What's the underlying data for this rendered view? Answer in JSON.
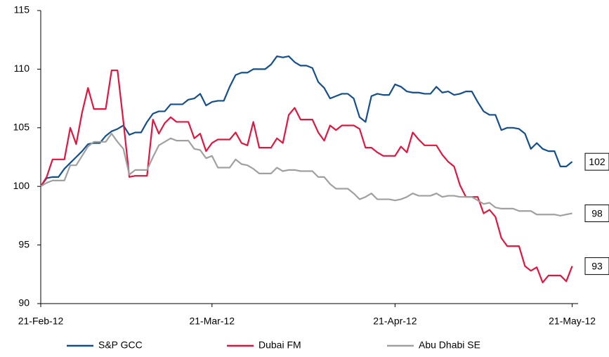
{
  "chart_data": {
    "type": "line",
    "x": [
      "2012-02-21",
      "2012-02-22",
      "2012-02-23",
      "2012-02-24",
      "2012-02-25",
      "2012-02-26",
      "2012-02-27",
      "2012-02-28",
      "2012-02-29",
      "2012-03-01",
      "2012-03-02",
      "2012-03-03",
      "2012-03-04",
      "2012-03-05",
      "2012-03-06",
      "2012-03-07",
      "2012-03-08",
      "2012-03-09",
      "2012-03-10",
      "2012-03-11",
      "2012-03-12",
      "2012-03-13",
      "2012-03-14",
      "2012-03-15",
      "2012-03-16",
      "2012-03-17",
      "2012-03-18",
      "2012-03-19",
      "2012-03-20",
      "2012-03-21",
      "2012-03-22",
      "2012-03-23",
      "2012-03-24",
      "2012-03-25",
      "2012-03-26",
      "2012-03-27",
      "2012-03-28",
      "2012-03-29",
      "2012-03-30",
      "2012-03-31",
      "2012-04-01",
      "2012-04-02",
      "2012-04-03",
      "2012-04-04",
      "2012-04-05",
      "2012-04-06",
      "2012-04-07",
      "2012-04-08",
      "2012-04-09",
      "2012-04-10",
      "2012-04-11",
      "2012-04-12",
      "2012-04-13",
      "2012-04-14",
      "2012-04-15",
      "2012-04-16",
      "2012-04-17",
      "2012-04-18",
      "2012-04-19",
      "2012-04-20",
      "2012-04-21",
      "2012-04-22",
      "2012-04-23",
      "2012-04-24",
      "2012-04-25",
      "2012-04-26",
      "2012-04-27",
      "2012-04-28",
      "2012-04-29",
      "2012-04-30",
      "2012-05-01",
      "2012-05-02",
      "2012-05-03",
      "2012-05-04",
      "2012-05-05",
      "2012-05-06",
      "2012-05-07",
      "2012-05-08",
      "2012-05-09",
      "2012-05-10",
      "2012-05-11",
      "2012-05-12",
      "2012-05-13",
      "2012-05-14",
      "2012-05-15",
      "2012-05-16",
      "2012-05-17",
      "2012-05-18",
      "2012-05-19",
      "2012-05-20",
      "2012-05-21"
    ],
    "series": [
      {
        "name": "S&P GCC",
        "color": "#134f8c",
        "end_label": "102",
        "values": [
          100,
          100.7,
          100.8,
          100.8,
          101.5,
          102,
          102.5,
          103,
          103.6,
          103.7,
          103.7,
          104.3,
          104.7,
          104.9,
          105.2,
          104.4,
          104.6,
          104.6,
          105.5,
          106.2,
          106.4,
          106.4,
          107,
          107,
          107,
          107.4,
          107.5,
          107.9,
          106.9,
          107.2,
          107.3,
          107.3,
          108.5,
          109.5,
          109.7,
          109.7,
          110,
          110,
          110,
          110.4,
          111.1,
          111,
          111.1,
          110.6,
          110.3,
          110.3,
          110.1,
          108.9,
          108.4,
          107.5,
          107.7,
          107.9,
          107.9,
          107.5,
          105.9,
          105.5,
          107.7,
          107.9,
          107.8,
          107.8,
          108.7,
          108.5,
          108.1,
          108,
          108,
          107.9,
          107.9,
          108.5,
          108,
          108.1,
          107.8,
          107.9,
          108.1,
          108.1,
          107.2,
          106.4,
          106.1,
          106.1,
          104.8,
          105,
          105,
          104.9,
          104.5,
          103.2,
          103.7,
          103.2,
          103,
          103,
          101.7,
          101.7,
          102.1
        ]
      },
      {
        "name": "Dubai FM",
        "color": "#e0163f",
        "end_label": "93",
        "values": [
          100,
          100.8,
          102.3,
          102.3,
          102.3,
          105,
          103.6,
          106.3,
          108.4,
          106.6,
          106.6,
          106.6,
          109.9,
          109.9,
          105.5,
          100.8,
          100.9,
          100.9,
          100.9,
          105.7,
          104.5,
          105.4,
          105.9,
          105.5,
          105.5,
          105.5,
          104.1,
          104.5,
          103,
          103.7,
          104,
          104,
          104,
          104.6,
          103.7,
          103.5,
          105.5,
          103.3,
          103.3,
          103.3,
          104.1,
          103.7,
          106.1,
          106.7,
          105.7,
          105.7,
          105.7,
          104.6,
          103.9,
          105.2,
          104.8,
          105.2,
          105.2,
          105.2,
          104.9,
          103.3,
          103.3,
          102.9,
          102.6,
          102.6,
          102.6,
          103.4,
          102.9,
          104.6,
          104,
          103.5,
          103.5,
          103.5,
          102.7,
          102.1,
          101.7,
          100.1,
          99.1,
          99.1,
          99.1,
          97.7,
          98,
          97.4,
          95.6,
          94.9,
          94.9,
          94.9,
          93.2,
          92.8,
          93.1,
          91.8,
          92.4,
          92.4,
          92.4,
          91.9,
          93.2
        ]
      },
      {
        "name": "Abu Dhabi SE",
        "color": "#a0a0a0",
        "end_label": "98",
        "values": [
          100,
          100.3,
          100.5,
          100.5,
          100.5,
          101.8,
          101.8,
          102.6,
          103.4,
          103.8,
          103.8,
          103.8,
          104.5,
          103.8,
          103.2,
          101,
          101.4,
          101.4,
          101.4,
          102.5,
          103.5,
          103.8,
          104.1,
          103.9,
          103.9,
          103.9,
          103.2,
          103.1,
          102.4,
          102.6,
          101.6,
          101.6,
          101.6,
          102.3,
          101.9,
          101.8,
          101.5,
          101.1,
          101.1,
          101.1,
          101.6,
          101.3,
          101.4,
          101.4,
          101.3,
          101.3,
          101.3,
          100.8,
          100.8,
          100.2,
          99.8,
          99.8,
          99.8,
          99.4,
          98.9,
          99.1,
          99.4,
          98.9,
          98.9,
          98.9,
          98.8,
          98.9,
          99.1,
          99.4,
          99.2,
          99.2,
          99.2,
          99.4,
          99.1,
          99.2,
          99.2,
          99.1,
          99.1,
          99.1,
          98.8,
          98.5,
          98.6,
          98.2,
          98.1,
          98.1,
          98.1,
          97.9,
          97.9,
          97.9,
          97.6,
          97.6,
          97.6,
          97.6,
          97.5,
          97.6,
          97.7
        ]
      }
    ],
    "xlim": [
      "2012-02-21",
      "2012-05-22"
    ],
    "xticks": [
      {
        "value": "2012-02-21",
        "label": "21-Feb-12"
      },
      {
        "value": "2012-03-21",
        "label": "21-Mar-12"
      },
      {
        "value": "2012-04-21",
        "label": "21-Apr-12"
      },
      {
        "value": "2012-05-21",
        "label": "21-May-12"
      }
    ],
    "ylim": [
      90,
      115
    ],
    "yticks": [
      90,
      95,
      100,
      105,
      110,
      115
    ],
    "grid": false,
    "legend": "bottom"
  }
}
